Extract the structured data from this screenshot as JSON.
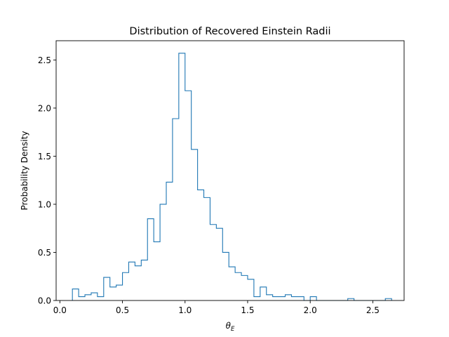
{
  "chart_data": {
    "type": "histogram",
    "title": "Distribution of Recovered Einstein Radii",
    "xlabel_symbol": "θ",
    "xlabel_subscript": "E",
    "ylabel": "Probability Density",
    "xlim": [
      -0.03,
      2.75
    ],
    "ylim": [
      0,
      2.7
    ],
    "xticks": [
      0.0,
      0.5,
      1.0,
      1.5,
      2.0,
      2.5
    ],
    "xtick_labels": [
      "0.0",
      "0.5",
      "1.0",
      "1.5",
      "2.0",
      "2.5"
    ],
    "yticks": [
      0.0,
      0.5,
      1.0,
      1.5,
      2.0,
      2.5
    ],
    "ytick_labels": [
      "0.0",
      "0.5",
      "1.0",
      "1.5",
      "2.0",
      "2.5"
    ],
    "color": "#1f77b4",
    "bin_edges": [
      0.1,
      0.15,
      0.2,
      0.25,
      0.3,
      0.35,
      0.4,
      0.45,
      0.5,
      0.55,
      0.6,
      0.65,
      0.7,
      0.75,
      0.8,
      0.85,
      0.9,
      0.95,
      1.0,
      1.05,
      1.1,
      1.15,
      1.2,
      1.25,
      1.3,
      1.35,
      1.4,
      1.45,
      1.5,
      1.55,
      1.6,
      1.65,
      1.7,
      1.75,
      1.8,
      1.85,
      1.9,
      1.95,
      2.0,
      2.05,
      2.1,
      2.15,
      2.2,
      2.25,
      2.3,
      2.35,
      2.4,
      2.45,
      2.5,
      2.55,
      2.6,
      2.65
    ],
    "values": [
      0.12,
      0.04,
      0.06,
      0.08,
      0.04,
      0.24,
      0.14,
      0.16,
      0.29,
      0.4,
      0.36,
      0.42,
      0.85,
      0.61,
      1.0,
      1.23,
      1.89,
      2.57,
      2.18,
      1.57,
      1.15,
      1.07,
      0.79,
      0.75,
      0.5,
      0.35,
      0.29,
      0.26,
      0.22,
      0.04,
      0.14,
      0.06,
      0.04,
      0.04,
      0.06,
      0.04,
      0.04,
      0.0,
      0.04,
      0.0,
      0.0,
      0.0,
      0.0,
      0.0,
      0.02,
      0.0,
      0.0,
      0.0,
      0.0,
      0.0,
      0.02
    ]
  }
}
